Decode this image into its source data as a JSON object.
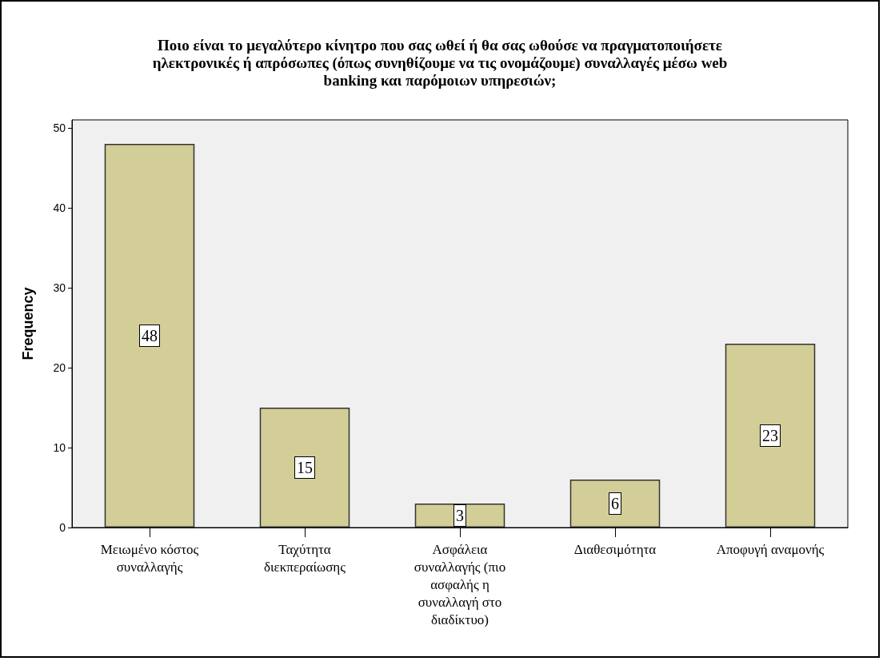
{
  "chart_data": {
    "type": "bar",
    "title": "Ποιο είναι το μεγαλύτερο κίνητρο που σας ωθεί ή θα σας ωθούσε να πραγματοποιήσετε\nηλεκτρονικές ή απρόσωπες (όπως συνηθίζουμε να τις ονομάζουμε) συναλλαγές μέσω web\nbanking και παρόμοιων υπηρεσιών;",
    "ylabel": "Frequency",
    "categories": [
      "Μειωμένο κόστος συναλλαγής",
      "Ταχύτητα διεκπεραίωσης",
      "Ασφάλεια συναλλαγής (πιο ασφαλής η συναλλαγή στο διαδίκτυο)",
      "Διαθεσιμότητα",
      "Αποφυγή αναμονής"
    ],
    "values": [
      48,
      15,
      3,
      6,
      23
    ],
    "color": "#d3ce97",
    "ylim": [
      0,
      51
    ],
    "yticks": [
      0,
      10,
      20,
      30,
      40,
      50
    ],
    "grid": false,
    "data_labels": true
  }
}
